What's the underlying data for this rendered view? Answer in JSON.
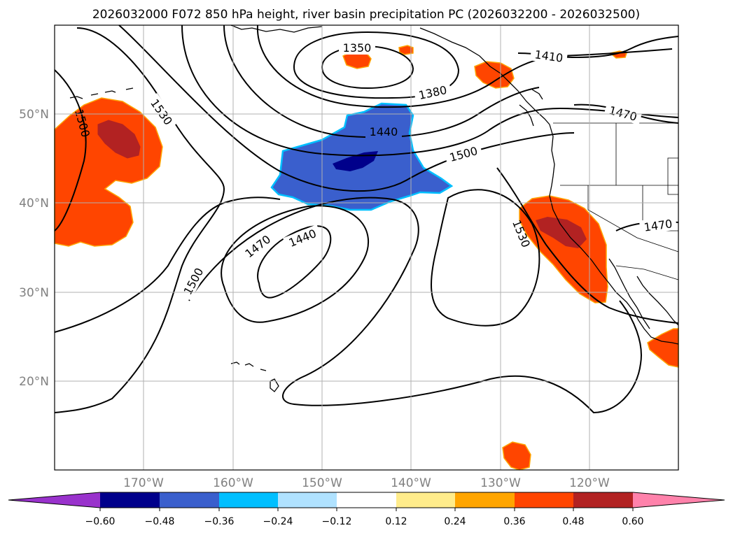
{
  "title": "2026032000 F072 850 hPa height, river basin precipitation PC (2026032200 - 2026032500)",
  "latitude_labels": [
    "50°N",
    "40°N",
    "30°N",
    "20°N"
  ],
  "longitude_labels": [
    "170°W",
    "160°W",
    "150°W",
    "140°W",
    "130°W",
    "120°W"
  ],
  "contour_labels": {
    "c1350": "1350",
    "c1380": "1380",
    "c1410": "1410",
    "c1440a": "1440",
    "c1440b": "1440",
    "c1470a": "1470",
    "c1470b": "1470",
    "c1470c": "1470",
    "c1500a": "1500",
    "c1500b": "1500",
    "c1500c": "1500",
    "c1530a": "1530",
    "c1530b": "1530"
  },
  "colorbar": {
    "ticks": [
      "−0.60",
      "−0.48",
      "−0.36",
      "−0.24",
      "−0.12",
      "0.12",
      "0.24",
      "0.36",
      "0.48",
      "0.60"
    ],
    "colors": {
      "under": "#9932cc",
      "neg060": "#00008b",
      "neg048": "#3a5fcd",
      "neg036": "#00bfff",
      "neg024": "#b0e2ff",
      "zero": "#ffffff",
      "pos012": "#ffec8b",
      "pos024": "#ffa500",
      "pos036": "#ff4500",
      "pos048": "#b22222",
      "over": "#ff82ab"
    }
  }
}
